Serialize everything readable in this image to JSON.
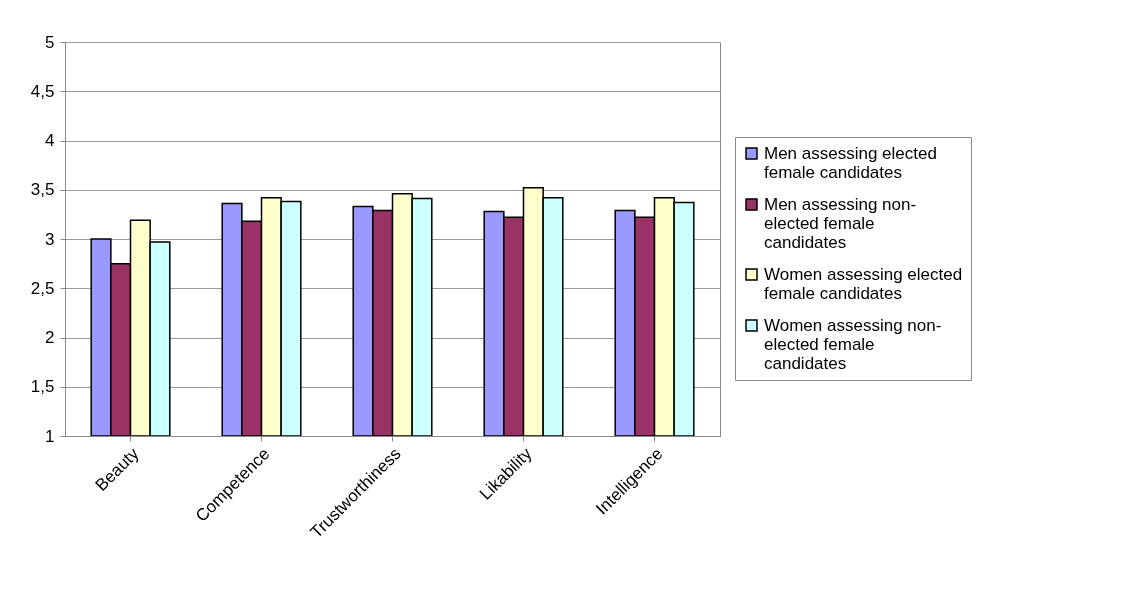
{
  "chart_data": {
    "type": "bar",
    "categories": [
      "Beauty",
      "Competence",
      "Trustworthiness",
      "Likability",
      "Intelligence"
    ],
    "series": [
      {
        "name": "Men assessing elected female candidates",
        "color": "#9999ff",
        "values": [
          3.0,
          3.36,
          3.33,
          3.28,
          3.29
        ]
      },
      {
        "name": "Men assessing non-elected  female candidates",
        "color": "#993366",
        "values": [
          2.75,
          3.18,
          3.29,
          3.22,
          3.22
        ]
      },
      {
        "name": "Women assessing elected female candidates",
        "color": "#ffffcc",
        "values": [
          3.19,
          3.42,
          3.46,
          3.52,
          3.42
        ]
      },
      {
        "name": "Women assessing non-elected  female candidates",
        "color": "#ccffff",
        "values": [
          2.97,
          3.38,
          3.41,
          3.42,
          3.37
        ]
      }
    ],
    "ylim": [
      1,
      5
    ],
    "yticks": [
      1,
      {
        "value": 1.5,
        "label": "1,5"
      },
      2,
      {
        "value": 2.5,
        "label": "2,5"
      },
      3,
      {
        "value": 3.5,
        "label": "3,5"
      },
      4,
      {
        "value": 4.5,
        "label": "4,5"
      },
      5
    ],
    "grid": "y",
    "legend": "right"
  }
}
